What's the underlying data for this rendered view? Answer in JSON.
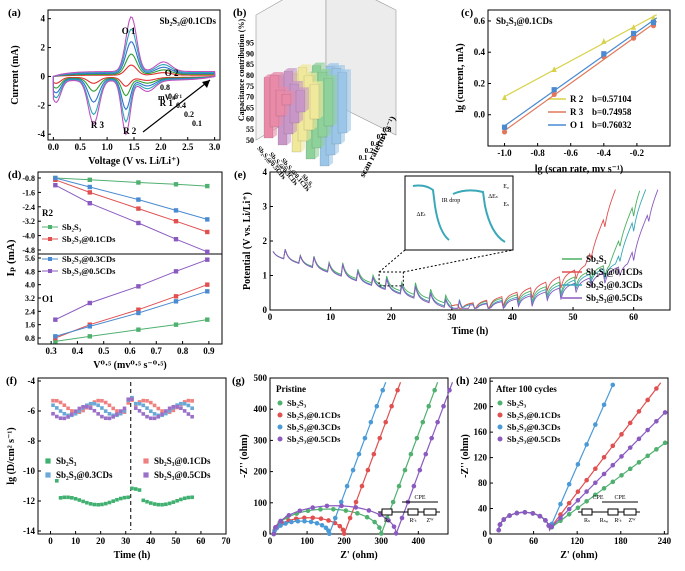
{
  "figure": {
    "panel_labels": [
      "(a)",
      "(b)",
      "(c)",
      "(d)",
      "(e)",
      "(f)",
      "(g)",
      "(h)"
    ]
  },
  "chart_data": [
    {
      "panel": "(a)",
      "type": "line",
      "xlabel": "Voltage (V vs. Li/Li⁺)",
      "ylabel": "Current (mA)",
      "xlim": [
        -0.1,
        3.1
      ],
      "ylim": [
        -4.4,
        4.6
      ],
      "xticks": [
        0.0,
        0.5,
        1.0,
        1.5,
        2.0,
        2.5,
        3.0
      ],
      "yticks": [
        -4,
        -2,
        0,
        2,
        4
      ],
      "legend_title": "Sb₂S₃@0.1CDs",
      "annotations": [
        "O 1",
        "O 2",
        "R 1",
        "R 2",
        "R 3"
      ],
      "scan_rate_label": "mV s⁻¹",
      "series": [
        {
          "name": "0.1",
          "color": "#e03030",
          "peak_o1": 0.7,
          "peak_r2": -0.6,
          "peak_r3": -0.4
        },
        {
          "name": "0.2",
          "color": "#30a030",
          "peak_o1": 1.4,
          "peak_r2": -1.2,
          "peak_r3": -0.9
        },
        {
          "name": "0.4",
          "color": "#3070d0",
          "peak_o1": 2.2,
          "peak_r2": -2.1,
          "peak_r3": -1.6
        },
        {
          "name": "0.6",
          "color": "#2aa8b8",
          "peak_o1": 3.0,
          "peak_r2": -2.9,
          "peak_r3": -2.4
        },
        {
          "name": "0.8",
          "color": "#c050c0",
          "peak_o1": 3.8,
          "peak_r2": -3.7,
          "peak_r3": -3.0
        }
      ]
    },
    {
      "panel": "(b)",
      "type": "bar",
      "ylabel": "Capacitance contribution (%)",
      "xlabel": "scan rate(mV s⁻¹)",
      "zticks": [
        "50",
        "55",
        "60",
        "65",
        "70",
        "75",
        "80",
        "85",
        "90",
        "95"
      ],
      "categories": [
        "Sb₂S₃@0.5CDs",
        "Sb₂S₃@0.3CDs",
        "Sb₂S₃@0.1CDs",
        "Sb₂S₃"
      ],
      "scan_rates": [
        "0.1",
        "0.2",
        "0.4",
        "0.6",
        "0.8"
      ],
      "series": [
        {
          "name": "0.1",
          "color": "#e88aa8",
          "values": [
            78,
            74,
            62,
            55
          ]
        },
        {
          "name": "0.2",
          "color": "#c897c8",
          "values": [
            82,
            79,
            68,
            60
          ]
        },
        {
          "name": "0.4",
          "color": "#f0e89a",
          "values": [
            86,
            84,
            75,
            66
          ]
        },
        {
          "name": "0.6",
          "color": "#8fd19a",
          "values": [
            89,
            88,
            80,
            72
          ]
        },
        {
          "name": "0.8",
          "color": "#9cc6e8",
          "values": [
            92,
            91,
            85,
            78
          ]
        }
      ]
    },
    {
      "panel": "(c)",
      "type": "scatter",
      "title": "Sb₂S₃@0.1CDs",
      "xlabel": "lg (scan rate, mv s⁻¹)",
      "ylabel": "lg (current, mA)",
      "xlim": [
        -1.1,
        0.0
      ],
      "ylim": [
        -0.2,
        0.67
      ],
      "xticks": [
        -1.0,
        -0.8,
        -0.6,
        -0.4,
        -0.2
      ],
      "yticks": [
        0.0,
        0.2,
        0.4,
        0.6
      ],
      "x": [
        -1.0,
        -0.7,
        -0.4,
        -0.22,
        -0.1
      ],
      "series": [
        {
          "name": "R 2",
          "b_label": "b=0.57104",
          "color": "#d8d24a",
          "marker": "triangle",
          "values": [
            0.11,
            0.29,
            0.47,
            0.56,
            0.62
          ]
        },
        {
          "name": "R 3",
          "b_label": "b=0.74958",
          "color": "#e2775a",
          "marker": "circle",
          "values": [
            -0.11,
            0.13,
            0.37,
            0.49,
            0.57
          ]
        },
        {
          "name": "O 1",
          "b_label": "b=0.76032",
          "color": "#4a8ad0",
          "marker": "square",
          "values": [
            -0.08,
            0.16,
            0.39,
            0.52,
            0.59
          ]
        }
      ]
    },
    {
      "panel": "(d)",
      "type": "scatter",
      "xlabel": "V⁰·⁵ (mv⁰·⁵ s⁻⁰·⁵)",
      "ylabel": "Iₚ (mA)",
      "xlim": [
        0.25,
        0.95
      ],
      "xticks": [
        0.3,
        0.4,
        0.5,
        0.6,
        0.7,
        0.8,
        0.9
      ],
      "x": [
        0.316,
        0.447,
        0.632,
        0.775,
        0.894
      ],
      "top_label": "R2",
      "bottom_label": "O1",
      "top_yticks": [
        "-0.8",
        "-1.6",
        "-2.4",
        "-3.2",
        "-4.0",
        "-4.8"
      ],
      "bottom_yticks": [
        "0.8",
        "1.6",
        "2.4",
        "3.2",
        "4.0",
        "4.8",
        "5.6"
      ],
      "top_series": [
        {
          "name": "Sb₂S₃",
          "color": "#50b070",
          "values": [
            -0.8,
            -0.9,
            -1.05,
            -1.15,
            -1.25
          ]
        },
        {
          "name": "Sb₂S₃@0.1CDs",
          "color": "#e05050",
          "values": [
            -0.9,
            -1.6,
            -2.5,
            -3.2,
            -3.8
          ]
        },
        {
          "name": "Sb₂S₃@0.3CDs",
          "color": "#4a8ad0",
          "values": [
            -0.8,
            -1.3,
            -2.0,
            -2.6,
            -3.1
          ]
        },
        {
          "name": "Sb₂S₃@0.5CDs",
          "color": "#8a5ac0",
          "values": [
            -1.2,
            -2.2,
            -3.3,
            -4.2,
            -4.9
          ]
        }
      ],
      "bottom_series": [
        {
          "name": "Sb₂S₃",
          "color": "#50b070",
          "values": [
            0.6,
            0.9,
            1.3,
            1.6,
            1.9
          ]
        },
        {
          "name": "Sb₂S₃@0.1CDs",
          "color": "#e05050",
          "values": [
            0.8,
            1.6,
            2.5,
            3.3,
            4.0
          ]
        },
        {
          "name": "Sb₂S₃@0.3CDs",
          "color": "#4a8ad0",
          "values": [
            0.9,
            1.5,
            2.3,
            3.0,
            3.6
          ]
        },
        {
          "name": "Sb₂S₃@0.5CDs",
          "color": "#8a5ac0",
          "values": [
            1.9,
            2.9,
            3.9,
            4.8,
            5.5
          ]
        }
      ]
    },
    {
      "panel": "(e)",
      "type": "line",
      "xlabel": "Time (h)",
      "ylabel": "Potential (V vs. Li/Li⁺)",
      "xlim": [
        0,
        66
      ],
      "ylim": [
        0,
        4
      ],
      "xticks": [
        0,
        10,
        20,
        30,
        40,
        50,
        60
      ],
      "yticks": [
        0,
        1,
        2,
        3,
        4
      ],
      "inset_labels": [
        "E₀",
        "Eₛ",
        "ΔEₛ",
        "ΔEₜ",
        "IR drop"
      ],
      "series": [
        {
          "name": "Sb₂S₃",
          "color": "#4ab060"
        },
        {
          "name": "Sb₂S₃@0.1CDs",
          "color": "#e05050"
        },
        {
          "name": "Sb₂S₃@0.3CDs",
          "color": "#3aa8b8"
        },
        {
          "name": "Sb₂S₃@0.5CDs",
          "color": "#8a5ac0"
        }
      ]
    },
    {
      "panel": "(f)",
      "type": "scatter",
      "xlabel": "Time (h)",
      "ylabel": "lg (D/cm² s⁻¹)",
      "xlim": [
        -5,
        70
      ],
      "ylim": [
        -14.2,
        -3.8
      ],
      "xticks": [
        0,
        10,
        20,
        30,
        40,
        50,
        60,
        70
      ],
      "yticks": [
        -4,
        -6,
        -8,
        -10,
        -12,
        -14
      ],
      "series": [
        {
          "name": "Sb₂S₃",
          "color": "#40b070",
          "base": -12.0
        },
        {
          "name": "Sb₂S₃@0.1CDs",
          "color": "#f08080",
          "base": -5.7
        },
        {
          "name": "Sb₂S₃@0.3CDs",
          "color": "#6aa8d8",
          "base": -5.9
        },
        {
          "name": "Sb₂S₃@0.5CDs",
          "color": "#9a70c8",
          "base": -6.1
        }
      ]
    },
    {
      "panel": "(g)",
      "type": "scatter",
      "title": "Pristine",
      "xlabel": "Z' (ohm)",
      "ylabel": "-Z'' (ohm)",
      "xlim": [
        0,
        480
      ],
      "ylim": [
        0,
        500
      ],
      "xticks": [
        0,
        100,
        200,
        300,
        400
      ],
      "yticks": [
        0,
        100,
        200,
        300,
        400,
        500
      ],
      "circuit_labels": [
        "CPE",
        "Rₛ",
        "Rᶜₜ",
        "Zᵂ"
      ],
      "series": [
        {
          "name": "Sb₂S₃",
          "color": "#50b070",
          "rct": 290
        },
        {
          "name": "Sb₂S₃@0.1CDs",
          "color": "#e05050",
          "rct": 190
        },
        {
          "name": "Sb₂S₃@0.3CDs",
          "color": "#4a9ad8",
          "rct": 150
        },
        {
          "name": "Sb₂S₃@0.5CDs",
          "color": "#8a5ac0",
          "rct": 330
        }
      ]
    },
    {
      "panel": "(h)",
      "type": "scatter",
      "title": "After 100 cycles",
      "xlabel": "Z' (ohm)",
      "ylabel": "-Z'' (ohm)",
      "xlim": [
        0,
        245
      ],
      "ylim": [
        0,
        245
      ],
      "xticks": [
        0,
        60,
        120,
        180,
        240
      ],
      "yticks": [
        0,
        40,
        80,
        120,
        160,
        200,
        240
      ],
      "circuit_labels": [
        "CPE",
        "CPE",
        "Rₛ",
        "Rₛₑᵢ",
        "Rᶜₜ",
        "Zᵂ"
      ],
      "series": [
        {
          "name": "Sb₂S₃",
          "color": "#50b070",
          "slope": 0.85
        },
        {
          "name": "Sb₂S₃@0.1CDs",
          "color": "#e05050",
          "slope": 1.5
        },
        {
          "name": "Sb₂S₃@0.3CDs",
          "color": "#4a9ad8",
          "slope": 2.6
        },
        {
          "name": "Sb₂S₃@0.5CDs",
          "color": "#8a5ac0",
          "slope": 1.15
        }
      ]
    }
  ]
}
